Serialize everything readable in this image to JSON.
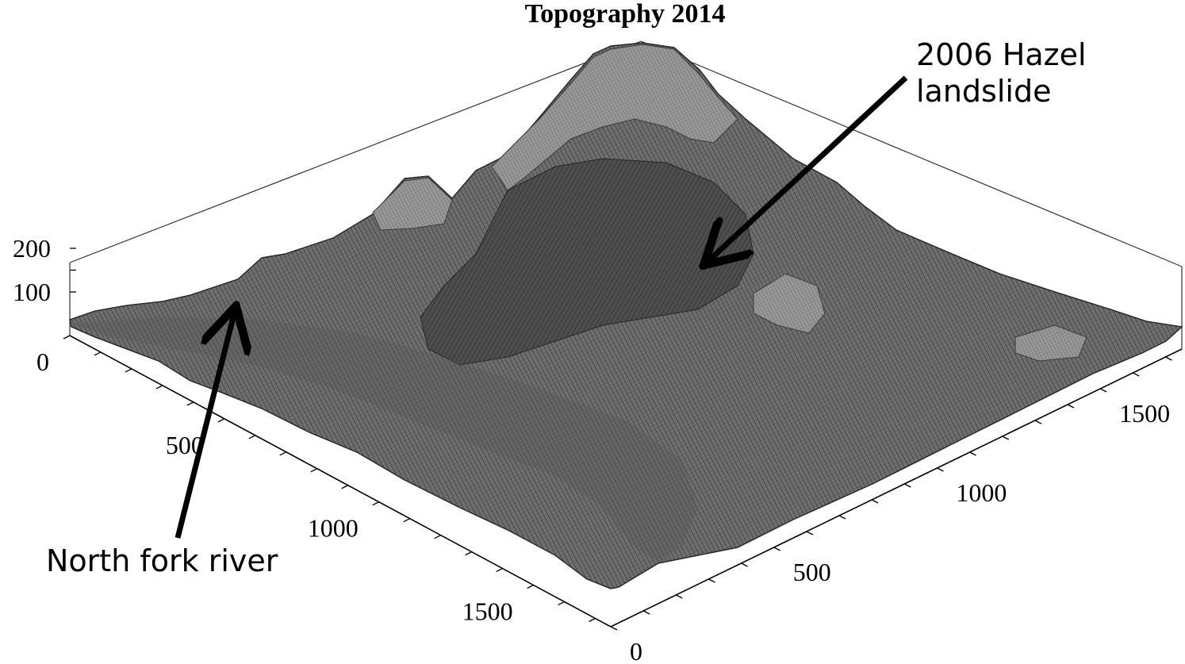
{
  "chart_data": {
    "type": "surface",
    "title": "Topography 2014",
    "axes": {
      "x_left": {
        "ticks": [
          0,
          500,
          1000,
          1500
        ]
      },
      "y_right": {
        "ticks": [
          0,
          500,
          1000,
          1500
        ]
      },
      "z": {
        "ticks": [
          100,
          200
        ]
      }
    },
    "annotations": [
      {
        "text_lines": [
          "2006 Hazel",
          "landslide"
        ],
        "arrow": true
      },
      {
        "text_lines": [
          "North fork river"
        ],
        "arrow": true
      }
    ],
    "colors": {
      "surface_dark": "#2b2b2b",
      "surface_mid": "#6e6e6e",
      "surface_light": "#a9a9a9",
      "box": "#333333",
      "text": "#000000"
    }
  }
}
